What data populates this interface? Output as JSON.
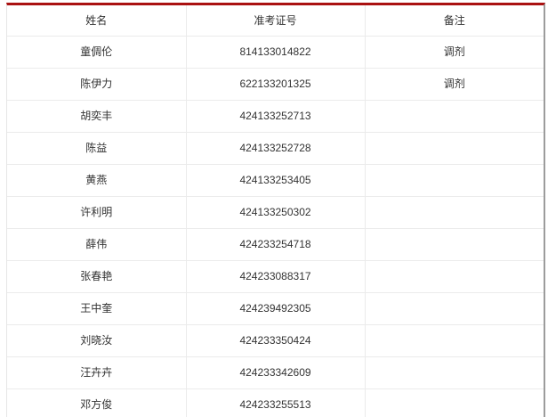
{
  "colors": {
    "accent": "#aa1111",
    "grid_line": "#ebebeb",
    "text": "#333333"
  },
  "table": {
    "columns": [
      "姓名",
      "准考证号",
      "备注"
    ],
    "rows": [
      {
        "name": "童倜伦",
        "ticket": "814133014822",
        "note": "调剂"
      },
      {
        "name": "陈伊力",
        "ticket": "622133201325",
        "note": "调剂"
      },
      {
        "name": "胡奕丰",
        "ticket": "424133252713",
        "note": ""
      },
      {
        "name": "陈益",
        "ticket": "424133252728",
        "note": ""
      },
      {
        "name": "黄燕",
        "ticket": "424133253405",
        "note": ""
      },
      {
        "name": "许利明",
        "ticket": "424133250302",
        "note": ""
      },
      {
        "name": "薛伟",
        "ticket": "424233254718",
        "note": ""
      },
      {
        "name": "张春艳",
        "ticket": "424233088317",
        "note": ""
      },
      {
        "name": "王中奎",
        "ticket": "424239492305",
        "note": ""
      },
      {
        "name": "刘晓汝",
        "ticket": "424233350424",
        "note": ""
      },
      {
        "name": "汪卉卉",
        "ticket": "424233342609",
        "note": ""
      },
      {
        "name": "邓方俊",
        "ticket": "424233255513",
        "note": ""
      }
    ]
  }
}
